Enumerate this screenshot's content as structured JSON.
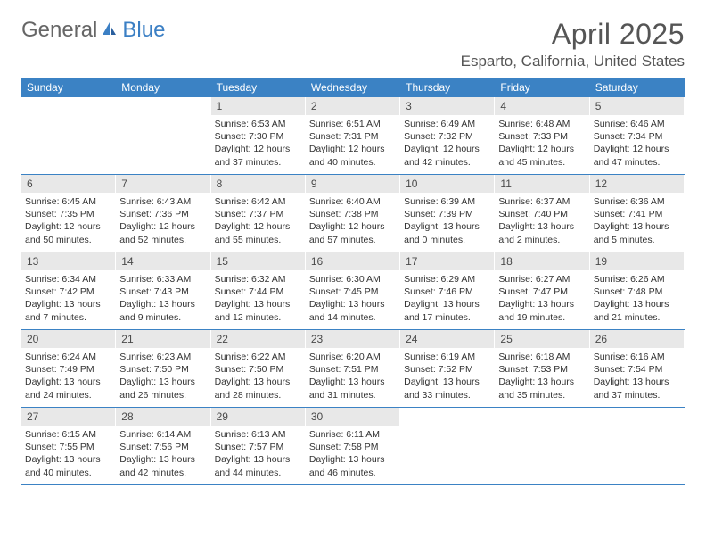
{
  "colors": {
    "header_bg": "#3b82c4",
    "header_text": "#ffffff",
    "daynum_bg": "#e8e8e8",
    "daynum_text": "#4a4a4a",
    "body_text": "#333333",
    "border": "#3b82c4",
    "logo_gray": "#666666",
    "logo_blue": "#3b7fc4",
    "title_color": "#555555"
  },
  "logo": {
    "part1": "General",
    "part2": "Blue"
  },
  "title": "April 2025",
  "location": "Esparto, California, United States",
  "weekdays": [
    "Sunday",
    "Monday",
    "Tuesday",
    "Wednesday",
    "Thursday",
    "Friday",
    "Saturday"
  ],
  "weeks": [
    [
      null,
      null,
      {
        "n": "1",
        "sr": "6:53 AM",
        "ss": "7:30 PM",
        "dl": "12 hours and 37 minutes."
      },
      {
        "n": "2",
        "sr": "6:51 AM",
        "ss": "7:31 PM",
        "dl": "12 hours and 40 minutes."
      },
      {
        "n": "3",
        "sr": "6:49 AM",
        "ss": "7:32 PM",
        "dl": "12 hours and 42 minutes."
      },
      {
        "n": "4",
        "sr": "6:48 AM",
        "ss": "7:33 PM",
        "dl": "12 hours and 45 minutes."
      },
      {
        "n": "5",
        "sr": "6:46 AM",
        "ss": "7:34 PM",
        "dl": "12 hours and 47 minutes."
      }
    ],
    [
      {
        "n": "6",
        "sr": "6:45 AM",
        "ss": "7:35 PM",
        "dl": "12 hours and 50 minutes."
      },
      {
        "n": "7",
        "sr": "6:43 AM",
        "ss": "7:36 PM",
        "dl": "12 hours and 52 minutes."
      },
      {
        "n": "8",
        "sr": "6:42 AM",
        "ss": "7:37 PM",
        "dl": "12 hours and 55 minutes."
      },
      {
        "n": "9",
        "sr": "6:40 AM",
        "ss": "7:38 PM",
        "dl": "12 hours and 57 minutes."
      },
      {
        "n": "10",
        "sr": "6:39 AM",
        "ss": "7:39 PM",
        "dl": "13 hours and 0 minutes."
      },
      {
        "n": "11",
        "sr": "6:37 AM",
        "ss": "7:40 PM",
        "dl": "13 hours and 2 minutes."
      },
      {
        "n": "12",
        "sr": "6:36 AM",
        "ss": "7:41 PM",
        "dl": "13 hours and 5 minutes."
      }
    ],
    [
      {
        "n": "13",
        "sr": "6:34 AM",
        "ss": "7:42 PM",
        "dl": "13 hours and 7 minutes."
      },
      {
        "n": "14",
        "sr": "6:33 AM",
        "ss": "7:43 PM",
        "dl": "13 hours and 9 minutes."
      },
      {
        "n": "15",
        "sr": "6:32 AM",
        "ss": "7:44 PM",
        "dl": "13 hours and 12 minutes."
      },
      {
        "n": "16",
        "sr": "6:30 AM",
        "ss": "7:45 PM",
        "dl": "13 hours and 14 minutes."
      },
      {
        "n": "17",
        "sr": "6:29 AM",
        "ss": "7:46 PM",
        "dl": "13 hours and 17 minutes."
      },
      {
        "n": "18",
        "sr": "6:27 AM",
        "ss": "7:47 PM",
        "dl": "13 hours and 19 minutes."
      },
      {
        "n": "19",
        "sr": "6:26 AM",
        "ss": "7:48 PM",
        "dl": "13 hours and 21 minutes."
      }
    ],
    [
      {
        "n": "20",
        "sr": "6:24 AM",
        "ss": "7:49 PM",
        "dl": "13 hours and 24 minutes."
      },
      {
        "n": "21",
        "sr": "6:23 AM",
        "ss": "7:50 PM",
        "dl": "13 hours and 26 minutes."
      },
      {
        "n": "22",
        "sr": "6:22 AM",
        "ss": "7:50 PM",
        "dl": "13 hours and 28 minutes."
      },
      {
        "n": "23",
        "sr": "6:20 AM",
        "ss": "7:51 PM",
        "dl": "13 hours and 31 minutes."
      },
      {
        "n": "24",
        "sr": "6:19 AM",
        "ss": "7:52 PM",
        "dl": "13 hours and 33 minutes."
      },
      {
        "n": "25",
        "sr": "6:18 AM",
        "ss": "7:53 PM",
        "dl": "13 hours and 35 minutes."
      },
      {
        "n": "26",
        "sr": "6:16 AM",
        "ss": "7:54 PM",
        "dl": "13 hours and 37 minutes."
      }
    ],
    [
      {
        "n": "27",
        "sr": "6:15 AM",
        "ss": "7:55 PM",
        "dl": "13 hours and 40 minutes."
      },
      {
        "n": "28",
        "sr": "6:14 AM",
        "ss": "7:56 PM",
        "dl": "13 hours and 42 minutes."
      },
      {
        "n": "29",
        "sr": "6:13 AM",
        "ss": "7:57 PM",
        "dl": "13 hours and 44 minutes."
      },
      {
        "n": "30",
        "sr": "6:11 AM",
        "ss": "7:58 PM",
        "dl": "13 hours and 46 minutes."
      },
      null,
      null,
      null
    ]
  ],
  "labels": {
    "sunrise": "Sunrise: ",
    "sunset": "Sunset: ",
    "daylight": "Daylight: "
  }
}
